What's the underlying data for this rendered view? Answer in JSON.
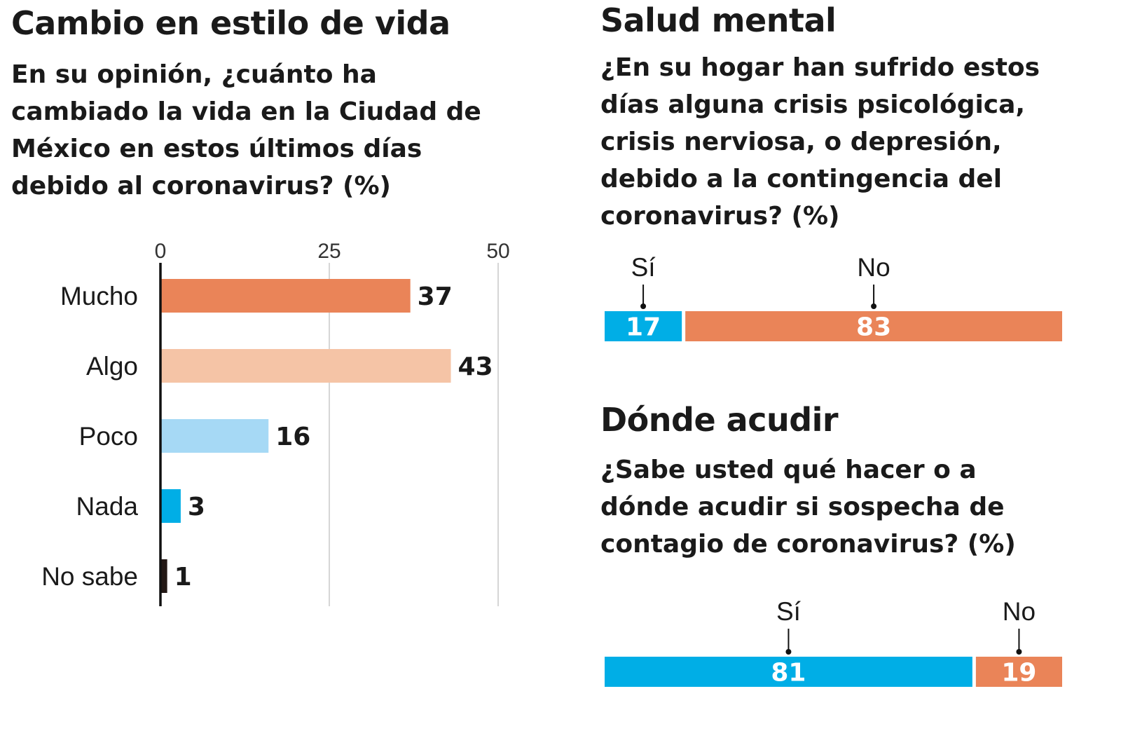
{
  "chart_data": [
    {
      "type": "bar",
      "orientation": "horizontal",
      "title": "Cambio en estilo de vida",
      "subtitle": "En su opinión, ¿cuánto ha cambiado la vida en la Ciudad de México en estos últimos días debido al coronavirus?  (%)",
      "subtitle_lines": [
        "En su opinión, ¿cuánto ha",
        "cambiado la vida en la Ciudad de",
        "México en estos últimos días",
        "debido al coronavirus?  (%)"
      ],
      "categories": [
        "Mucho",
        "Algo",
        "Poco",
        "Nada",
        "No sabe"
      ],
      "values": [
        37,
        43,
        16,
        3,
        1
      ],
      "value_labels": [
        "37",
        "43",
        "16",
        "3",
        "1"
      ],
      "colors": [
        "#ea8458",
        "#f5c4a6",
        "#a6d9f5",
        "#00aee6",
        "#231815"
      ],
      "xticks": [
        0,
        25,
        50
      ],
      "xtick_labels": [
        "0",
        "25",
        "50"
      ],
      "xlim": [
        0,
        50
      ],
      "grid": true
    },
    {
      "type": "bar",
      "orientation": "stacked-100",
      "title": "Salud mental",
      "subtitle": "¿En su hogar han sufrido estos días alguna crisis psicológica, crisis nerviosa, o depresión, debido a la contingencia del coronavirus?  (%)",
      "subtitle_lines": [
        "¿En su hogar han sufrido estos",
        "días alguna crisis psicológica,",
        "crisis nerviosa, o depresión,",
        "debido a la contingencia del",
        "coronavirus?  (%)"
      ],
      "categories": [
        "Sí",
        "No"
      ],
      "values": [
        17,
        83
      ],
      "value_labels": [
        "17",
        "83"
      ],
      "colors": [
        "#00aee6",
        "#ea8458"
      ]
    },
    {
      "type": "bar",
      "orientation": "stacked-100",
      "title": "Dónde acudir",
      "subtitle": "¿Sabe usted qué hacer o a dónde acudir si sospecha de contagio de coronavirus?  (%)",
      "subtitle_lines": [
        "¿Sabe usted qué hacer o a",
        "dónde acudir si sospecha de",
        "contagio de coronavirus?  (%)"
      ],
      "categories": [
        "Sí",
        "No"
      ],
      "values": [
        81,
        19
      ],
      "value_labels": [
        "81",
        "19"
      ],
      "colors": [
        "#00aee6",
        "#ea8458"
      ]
    }
  ]
}
